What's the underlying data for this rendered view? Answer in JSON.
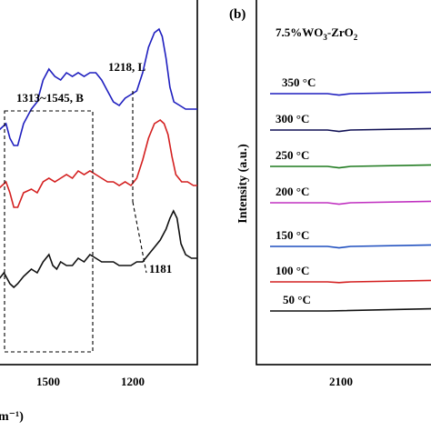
{
  "chart_data": [
    {
      "panel": "a",
      "type": "line",
      "xlabel_visible_fragment": "m⁻¹)",
      "x_ticks": [
        "1500",
        "1200"
      ],
      "x_reversed": true,
      "xlim": [
        1630,
        1120
      ],
      "annotations": {
        "region_b": "1313~1545, B",
        "peak_l": "1218, L",
        "peak_shift": "1181"
      },
      "series": [
        {
          "color": "#1f1fbf",
          "points": [
            [
              1630,
              0.64
            ],
            [
              1610,
              0.66
            ],
            [
              1600,
              0.62
            ],
            [
              1590,
              0.6
            ],
            [
              1580,
              0.6
            ],
            [
              1565,
              0.66
            ],
            [
              1545,
              0.7
            ],
            [
              1530,
              0.72
            ],
            [
              1515,
              0.78
            ],
            [
              1500,
              0.81
            ],
            [
              1485,
              0.79
            ],
            [
              1470,
              0.78
            ],
            [
              1455,
              0.8
            ],
            [
              1440,
              0.79
            ],
            [
              1425,
              0.8
            ],
            [
              1410,
              0.79
            ],
            [
              1395,
              0.8
            ],
            [
              1380,
              0.8
            ],
            [
              1365,
              0.78
            ],
            [
              1350,
              0.75
            ],
            [
              1335,
              0.72
            ],
            [
              1320,
              0.71
            ],
            [
              1305,
              0.73
            ],
            [
              1290,
              0.74
            ],
            [
              1275,
              0.75
            ],
            [
              1260,
              0.8
            ],
            [
              1245,
              0.87
            ],
            [
              1230,
              0.91
            ],
            [
              1218,
              0.92
            ],
            [
              1210,
              0.9
            ],
            [
              1200,
              0.84
            ],
            [
              1190,
              0.76
            ],
            [
              1180,
              0.72
            ],
            [
              1165,
              0.71
            ],
            [
              1150,
              0.7
            ],
            [
              1135,
              0.7
            ],
            [
              1120,
              0.7
            ]
          ]
        },
        {
          "color": "#d42020",
          "points": [
            [
              1630,
              0.48
            ],
            [
              1610,
              0.5
            ],
            [
              1600,
              0.47
            ],
            [
              1590,
              0.43
            ],
            [
              1580,
              0.43
            ],
            [
              1565,
              0.47
            ],
            [
              1545,
              0.48
            ],
            [
              1530,
              0.47
            ],
            [
              1515,
              0.5
            ],
            [
              1500,
              0.51
            ],
            [
              1485,
              0.5
            ],
            [
              1470,
              0.51
            ],
            [
              1455,
              0.52
            ],
            [
              1440,
              0.51
            ],
            [
              1425,
              0.53
            ],
            [
              1410,
              0.52
            ],
            [
              1395,
              0.53
            ],
            [
              1380,
              0.52
            ],
            [
              1365,
              0.51
            ],
            [
              1350,
              0.5
            ],
            [
              1335,
              0.5
            ],
            [
              1320,
              0.49
            ],
            [
              1305,
              0.5
            ],
            [
              1290,
              0.49
            ],
            [
              1275,
              0.51
            ],
            [
              1260,
              0.56
            ],
            [
              1245,
              0.62
            ],
            [
              1230,
              0.66
            ],
            [
              1215,
              0.67
            ],
            [
              1205,
              0.66
            ],
            [
              1195,
              0.63
            ],
            [
              1185,
              0.57
            ],
            [
              1175,
              0.52
            ],
            [
              1160,
              0.5
            ],
            [
              1145,
              0.5
            ],
            [
              1130,
              0.49
            ],
            [
              1120,
              0.49
            ]
          ]
        },
        {
          "color": "#111111",
          "points": [
            [
              1630,
              0.23
            ],
            [
              1615,
              0.25
            ],
            [
              1600,
              0.22
            ],
            [
              1590,
              0.21
            ],
            [
              1580,
              0.22
            ],
            [
              1565,
              0.24
            ],
            [
              1545,
              0.26
            ],
            [
              1530,
              0.25
            ],
            [
              1515,
              0.28
            ],
            [
              1500,
              0.3
            ],
            [
              1490,
              0.27
            ],
            [
              1480,
              0.26
            ],
            [
              1470,
              0.28
            ],
            [
              1455,
              0.27
            ],
            [
              1440,
              0.27
            ],
            [
              1425,
              0.29
            ],
            [
              1410,
              0.28
            ],
            [
              1395,
              0.3
            ],
            [
              1380,
              0.29
            ],
            [
              1365,
              0.28
            ],
            [
              1350,
              0.28
            ],
            [
              1335,
              0.28
            ],
            [
              1320,
              0.27
            ],
            [
              1305,
              0.27
            ],
            [
              1290,
              0.27
            ],
            [
              1275,
              0.28
            ],
            [
              1260,
              0.28
            ],
            [
              1245,
              0.3
            ],
            [
              1230,
              0.32
            ],
            [
              1215,
              0.34
            ],
            [
              1200,
              0.37
            ],
            [
              1190,
              0.4
            ],
            [
              1181,
              0.42
            ],
            [
              1172,
              0.4
            ],
            [
              1162,
              0.33
            ],
            [
              1150,
              0.3
            ],
            [
              1135,
              0.29
            ],
            [
              1120,
              0.29
            ]
          ]
        }
      ]
    },
    {
      "panel": "b",
      "type": "line",
      "panel_label": "(b)",
      "title": "7.5%WO",
      "title_sub": "3",
      "title_rest": "-ZrO",
      "title_sub2": "2",
      "ylabel": "Intensity (a.u.)",
      "x_ticks": [
        "2100"
      ],
      "x_reversed": true,
      "xlim": [
        2150,
        2080
      ],
      "series": [
        {
          "name": "350 °C",
          "color": "#1f1fbf",
          "points": [
            [
              2150,
              0.0
            ],
            [
              2125,
              0.0
            ],
            [
              2120,
              -0.2
            ],
            [
              2115,
              0.0
            ],
            [
              2080,
              0.2
            ]
          ]
        },
        {
          "name": "300 °C",
          "color": "#111155",
          "points": [
            [
              2150,
              0.0
            ],
            [
              2125,
              0.0
            ],
            [
              2120,
              -0.2
            ],
            [
              2115,
              0.0
            ],
            [
              2080,
              0.2
            ]
          ]
        },
        {
          "name": "250 °C",
          "color": "#1f7a1f",
          "points": [
            [
              2150,
              0.0
            ],
            [
              2125,
              0.0
            ],
            [
              2120,
              -0.2
            ],
            [
              2115,
              0.0
            ],
            [
              2080,
              0.2
            ]
          ]
        },
        {
          "name": "200 °C",
          "color": "#c030c0",
          "points": [
            [
              2150,
              0.0
            ],
            [
              2125,
              0.0
            ],
            [
              2120,
              -0.2
            ],
            [
              2115,
              0.0
            ],
            [
              2080,
              0.2
            ]
          ]
        },
        {
          "name": "150 °C",
          "color": "#1f4fbf",
          "points": [
            [
              2150,
              0.0
            ],
            [
              2125,
              0.0
            ],
            [
              2120,
              -0.2
            ],
            [
              2115,
              0.0
            ],
            [
              2080,
              0.2
            ]
          ]
        },
        {
          "name": "100 °C",
          "color": "#d42020",
          "points": [
            [
              2150,
              0.0
            ],
            [
              2125,
              0.0
            ],
            [
              2120,
              -0.1
            ],
            [
              2115,
              0.0
            ],
            [
              2080,
              0.2
            ]
          ]
        },
        {
          "name": "50 °C",
          "color": "#111111",
          "points": [
            [
              2150,
              0.0
            ],
            [
              2125,
              0.0
            ],
            [
              2080,
              0.3
            ]
          ]
        }
      ]
    }
  ]
}
